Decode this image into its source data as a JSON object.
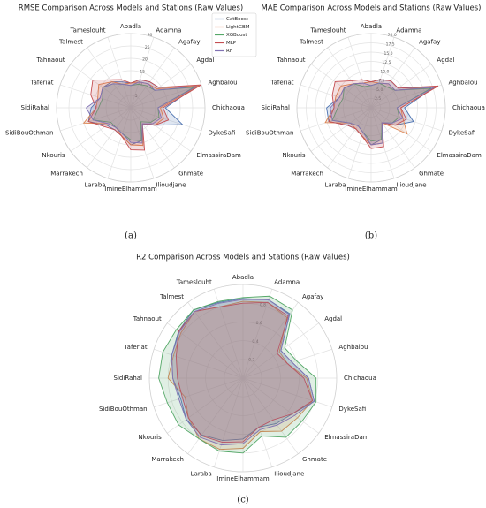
{
  "chart_data": [
    {
      "type": "radar",
      "title": "RMSE Comparison Across Models and Stations (Raw Values)",
      "caption": "(a)",
      "legend": "upper right",
      "categories": [
        "Abadla",
        "Adamna",
        "Agafay",
        "Agdal",
        "Aghbalou",
        "Chichaoua",
        "DykeSafi",
        "ElmassiraDam",
        "Ghmate",
        "Ilioudjane",
        "ImineElhammam",
        "Laraba",
        "Marrakech",
        "Nkouris",
        "SidiBouOthman",
        "SidiRahal",
        "Taferiat",
        "Tahnaout",
        "Talmest",
        "Tameslouht"
      ],
      "rlim": [
        0,
        30
      ],
      "rticks": [
        5,
        10,
        15,
        20,
        25,
        30
      ],
      "series": [
        {
          "name": "CatBoost",
          "color": "#4c72b0",
          "values": [
            10,
            12,
            13,
            14,
            28,
            14,
            22,
            12,
            8,
            14,
            15,
            12,
            11,
            12,
            18,
            16,
            13,
            14,
            13,
            11
          ]
        },
        {
          "name": "LightGBM",
          "color": "#dd8452",
          "values": [
            10,
            11,
            12,
            13,
            29,
            12,
            14,
            12,
            8,
            16,
            15,
            12,
            10,
            11,
            20,
            14,
            14,
            16,
            13,
            10
          ]
        },
        {
          "name": "XGBoost",
          "color": "#55a868",
          "values": [
            9,
            10,
            11,
            12,
            27,
            11,
            12,
            10,
            7,
            14,
            13,
            11,
            10,
            10,
            16,
            13,
            12,
            14,
            12,
            10
          ]
        },
        {
          "name": "MLP",
          "color": "#c44e52",
          "values": [
            10,
            12,
            13,
            14,
            30,
            13,
            16,
            12,
            8,
            18,
            17,
            12,
            11,
            13,
            18,
            14,
            17,
            19,
            14,
            12
          ]
        },
        {
          "name": "RF",
          "color": "#8172b3",
          "values": [
            9,
            11,
            12,
            12,
            28,
            11,
            13,
            11,
            8,
            15,
            14,
            11,
            10,
            11,
            16,
            18,
            13,
            14,
            12,
            10
          ]
        }
      ]
    },
    {
      "type": "radar",
      "title": "MAE Comparison Across Models and Stations (Raw Values)",
      "caption": "(b)",
      "categories": [
        "Abadla",
        "Adamna",
        "Agafay",
        "Agdal",
        "Aghbalou",
        "Chichaoua",
        "DykeSafi",
        "ElmassiraDam",
        "Ghmate",
        "Ilioudjane",
        "ImineElhammam",
        "Laraba",
        "Marrakech",
        "Nkouris",
        "SidiBouOthman",
        "SidiRahal",
        "Taferiat",
        "Tahnaout",
        "Talmest",
        "Tameslouht"
      ],
      "rlim": [
        0,
        20
      ],
      "rticks": [
        2.5,
        {
          "value": 5,
          "label": "5.0"
        },
        7.5,
        {
          "value": 10,
          "label": "10.0"
        },
        12.5,
        {
          "value": 15,
          "label": "15.0"
        },
        17.5,
        {
          "value": 20,
          "label": "20.0"
        }
      ],
      "series": [
        {
          "color": "#4c72b0",
          "values": [
            7,
            8,
            9,
            9,
            18,
            9,
            12,
            8,
            5,
            9,
            10,
            8,
            7,
            8,
            12,
            12,
            9,
            9,
            8,
            7
          ]
        },
        {
          "color": "#dd8452",
          "values": [
            7,
            7,
            8,
            8,
            19,
            8,
            9,
            12,
            5,
            10,
            10,
            8,
            7,
            7,
            13,
            10,
            10,
            10,
            8,
            7
          ]
        },
        {
          "color": "#55a868",
          "values": [
            6,
            7,
            7,
            8,
            17,
            7,
            8,
            7,
            5,
            9,
            9,
            7,
            6,
            7,
            11,
            9,
            8,
            9,
            8,
            6
          ]
        },
        {
          "color": "#c44e52",
          "values": [
            7,
            8,
            9,
            9,
            19,
            8,
            10,
            8,
            5,
            11,
            11,
            8,
            7,
            8,
            12,
            10,
            11,
            12,
            9,
            8
          ]
        },
        {
          "color": "#8172b3",
          "values": [
            6,
            7,
            8,
            8,
            18,
            7,
            9,
            7,
            5,
            10,
            10,
            7,
            6,
            7,
            11,
            11,
            9,
            9,
            8,
            7
          ]
        }
      ]
    },
    {
      "type": "radar",
      "title": "R2 Comparison Across Models and Stations (Raw Values)",
      "caption": "(c)",
      "categories": [
        "Abadla",
        "Adamna",
        "Agafay",
        "Agdal",
        "Aghbalou",
        "Chichaoua",
        "DykeSafi",
        "ElmassiraDam",
        "Ghmate",
        "Ilioudjane",
        "ImineElhammam",
        "Laraba",
        "Marrakech",
        "Nkouris",
        "SidiBouOthman",
        "SidiRahal",
        "Taferiat",
        "Tahnaout",
        "Talmest",
        "Tameslouht"
      ],
      "rlim": [
        0,
        1
      ],
      "rticks": [
        0.2,
        0.4,
        0.6,
        0.8
      ],
      "series": [
        {
          "color": "#4c72b0",
          "values": [
            0.85,
            0.88,
            0.85,
            0.5,
            0.55,
            0.7,
            0.8,
            0.65,
            0.6,
            0.55,
            0.65,
            0.7,
            0.75,
            0.75,
            0.7,
            0.75,
            0.8,
            0.85,
            0.9,
            0.85
          ]
        },
        {
          "color": "#dd8452",
          "values": [
            0.82,
            0.85,
            0.8,
            0.48,
            0.5,
            0.68,
            0.78,
            0.72,
            0.7,
            0.6,
            0.75,
            0.8,
            0.8,
            0.72,
            0.65,
            0.8,
            0.78,
            0.82,
            0.88,
            0.8
          ]
        },
        {
          "color": "#55a868",
          "values": [
            0.86,
            0.92,
            0.9,
            0.55,
            0.6,
            0.78,
            0.82,
            0.78,
            0.78,
            0.65,
            0.8,
            0.82,
            0.8,
            0.85,
            0.85,
            0.9,
            0.9,
            0.88,
            0.9,
            0.86
          ]
        },
        {
          "color": "#c44e52",
          "values": [
            0.8,
            0.85,
            0.82,
            0.45,
            0.5,
            0.65,
            0.78,
            0.65,
            0.55,
            0.55,
            0.68,
            0.72,
            0.76,
            0.72,
            0.68,
            0.7,
            0.75,
            0.85,
            0.88,
            0.8
          ]
        },
        {
          "color": "#8172b3",
          "values": [
            0.84,
            0.88,
            0.84,
            0.5,
            0.55,
            0.7,
            0.8,
            0.68,
            0.62,
            0.58,
            0.7,
            0.75,
            0.78,
            0.75,
            0.72,
            0.75,
            0.8,
            0.84,
            0.88,
            0.84
          ]
        }
      ]
    }
  ]
}
